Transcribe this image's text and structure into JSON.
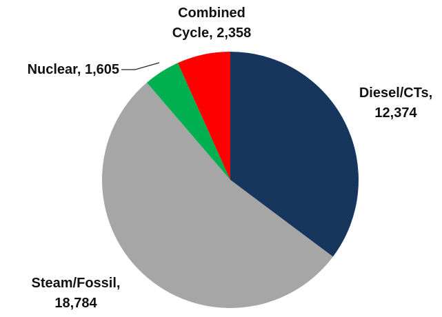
{
  "chart_data": {
    "type": "pie",
    "title": "",
    "start_angle_deg": 0,
    "direction": "clockwise",
    "legend": "none",
    "slices": [
      {
        "label": "Diesel/CTs",
        "value": 12374,
        "color": "#17365D",
        "label_lines": [
          "Diesel/CTs,",
          "12,374"
        ]
      },
      {
        "label": "Steam/Fossil",
        "value": 18784,
        "color": "#A6A6A6",
        "label_lines": [
          "Steam/Fossil,",
          "18,784"
        ]
      },
      {
        "label": "Nuclear",
        "value": 1605,
        "color": "#00B050",
        "label_lines": [
          "Nuclear, 1,605"
        ]
      },
      {
        "label": "Combined Cycle",
        "value": 2358,
        "color": "#FF0000",
        "label_lines": [
          "Combined",
          "Cycle, 2,358"
        ]
      }
    ]
  }
}
